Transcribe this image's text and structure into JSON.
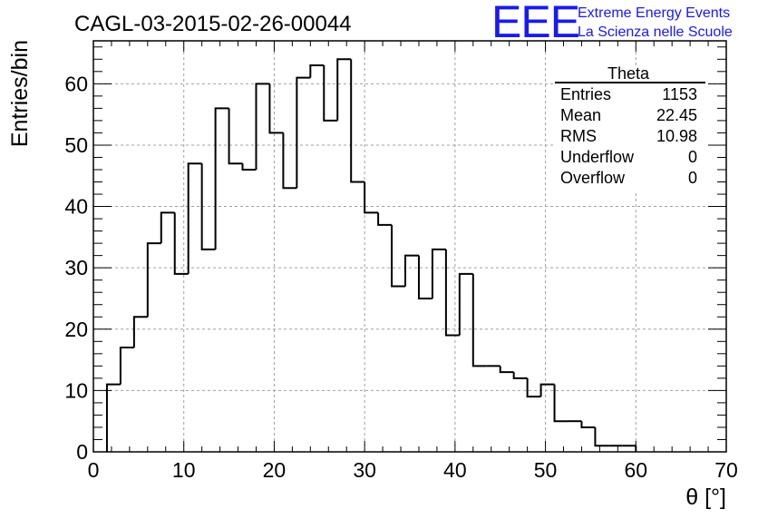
{
  "brand": {
    "logo": "EEE",
    "line1": "Extreme Energy Events",
    "line2": "La Scienza nelle Scuole",
    "color": "#1a1aee"
  },
  "stats": {
    "name": "Theta",
    "rows": [
      {
        "label": "Entries",
        "value": "1153"
      },
      {
        "label": "Mean",
        "value": "22.45"
      },
      {
        "label": "RMS",
        "value": "10.98"
      },
      {
        "label": "Underflow",
        "value": "0"
      },
      {
        "label": "Overflow",
        "value": "0"
      }
    ]
  },
  "chart_data": {
    "type": "bar",
    "title": "CAGL-03-2015-02-26-00044",
    "xlabel": "θ [°]",
    "ylabel": "Entries/bin",
    "xlim": [
      0,
      70
    ],
    "ylim": [
      0,
      67
    ],
    "grid": true,
    "legend": "top-right",
    "x_ticks": [
      0,
      10,
      20,
      30,
      40,
      50,
      60,
      70
    ],
    "y_ticks": [
      0,
      10,
      20,
      30,
      40,
      50,
      60
    ],
    "bin_width": 1.5,
    "bin_start": 1.5,
    "values": [
      11,
      17,
      22,
      34,
      39,
      29,
      47,
      33,
      56,
      47,
      46,
      60,
      52,
      43,
      61,
      63,
      54,
      64,
      44,
      39,
      37,
      27,
      32,
      25,
      33,
      19,
      29,
      14,
      14,
      13,
      12,
      9,
      11,
      5,
      5,
      4,
      1,
      1,
      1
    ],
    "line_color": "#000000",
    "grid_color": "#a0a0a0"
  }
}
